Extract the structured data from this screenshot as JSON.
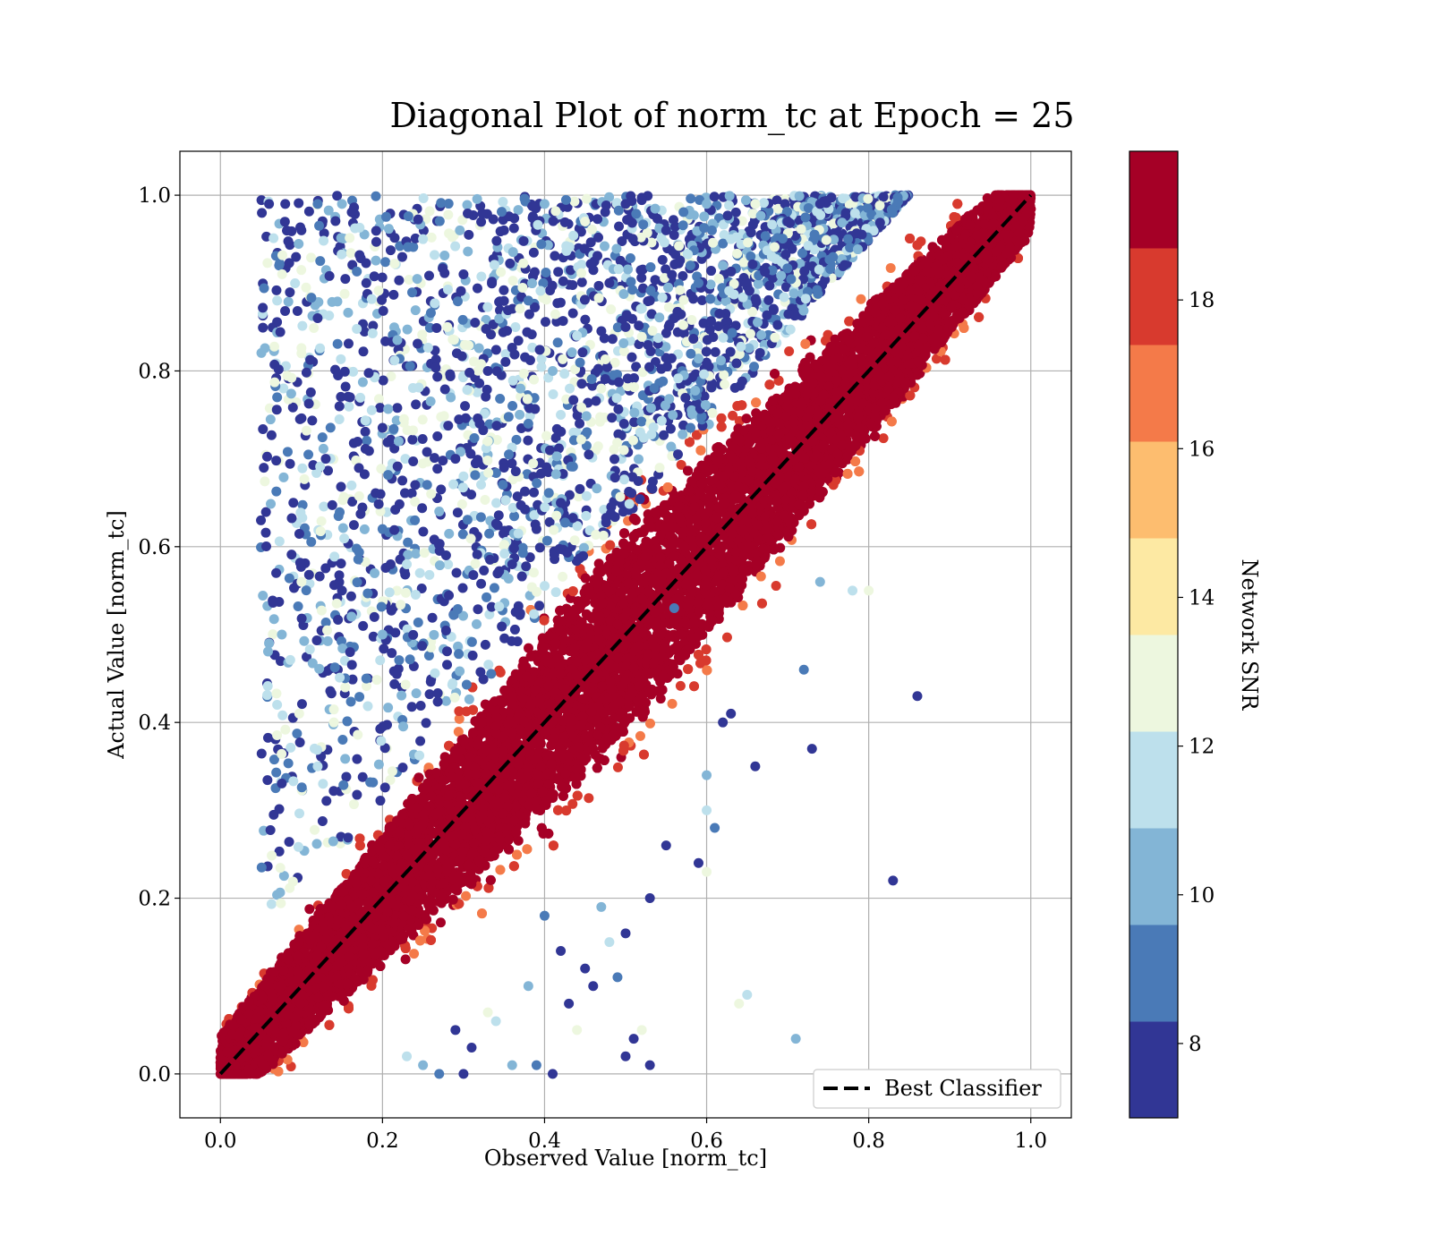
{
  "chart_data": {
    "type": "scatter",
    "title": "Diagonal Plot of norm_tc at Epoch = 25",
    "xlabel": "Observed Value [norm_tc]",
    "ylabel": "Actual Value [norm_tc]",
    "xlim": [
      -0.05,
      1.05
    ],
    "ylim": [
      -0.05,
      1.05
    ],
    "xticks": [
      "0.0",
      "0.2",
      "0.4",
      "0.6",
      "0.8",
      "1.0"
    ],
    "yticks": [
      "0.0",
      "0.2",
      "0.4",
      "0.6",
      "0.8",
      "1.0"
    ],
    "grid": true,
    "reference_line": {
      "label": "Best Classifier",
      "x": [
        0,
        1
      ],
      "y": [
        0,
        1
      ],
      "style": "dashed",
      "color": "#000000"
    },
    "legend": {
      "placement": "lower-right",
      "entries": [
        "Best Classifier"
      ]
    },
    "colorbar": {
      "label": "Network SNR",
      "range": [
        7,
        20
      ],
      "ticks": [
        "8",
        "10",
        "12",
        "14",
        "16",
        "18"
      ],
      "tick_values": [
        8,
        10,
        12,
        14,
        16,
        18
      ],
      "bands": [
        "#313695",
        "#4575b4",
        "#74add1",
        "#abd9e9",
        "#e0f3f8",
        "#fee090",
        "#fdae61",
        "#f46d43",
        "#d73027",
        "#a50026"
      ],
      "band_colors": [
        "#313695",
        "#4a7ab7",
        "#83b5d6",
        "#bde0ec",
        "#edf7df",
        "#fde9a3",
        "#fdbd6f",
        "#f47a49",
        "#d83a2e",
        "#a50026"
      ]
    },
    "series": [
      {
        "kind": "main_diagonal_band",
        "snr_color": "#a50026",
        "description_points": [
          [
            0.0,
            0.0
          ],
          [
            0.05,
            0.08
          ],
          [
            0.1,
            0.14
          ],
          [
            0.15,
            0.19
          ],
          [
            0.2,
            0.24
          ],
          [
            0.25,
            0.29
          ],
          [
            0.3,
            0.33
          ],
          [
            0.35,
            0.38
          ],
          [
            0.4,
            0.43
          ],
          [
            0.45,
            0.48
          ],
          [
            0.5,
            0.52
          ],
          [
            0.55,
            0.57
          ],
          [
            0.6,
            0.62
          ],
          [
            0.65,
            0.67
          ],
          [
            0.7,
            0.71
          ],
          [
            0.75,
            0.76
          ],
          [
            0.8,
            0.81
          ],
          [
            0.85,
            0.86
          ],
          [
            0.9,
            0.9
          ],
          [
            0.95,
            0.94
          ],
          [
            1.0,
            1.0
          ],
          [
            0.05,
            0.0
          ],
          [
            0.1,
            0.03
          ],
          [
            0.15,
            0.07
          ],
          [
            0.2,
            0.12
          ],
          [
            0.25,
            0.17
          ],
          [
            0.3,
            0.22
          ],
          [
            0.35,
            0.27
          ],
          [
            0.4,
            0.32
          ],
          [
            0.45,
            0.37
          ],
          [
            0.5,
            0.42
          ],
          [
            0.55,
            0.47
          ],
          [
            0.6,
            0.52
          ],
          [
            0.65,
            0.57
          ],
          [
            0.7,
            0.62
          ],
          [
            0.75,
            0.68
          ],
          [
            0.8,
            0.73
          ],
          [
            0.85,
            0.79
          ],
          [
            0.9,
            0.85
          ],
          [
            0.95,
            0.91
          ],
          [
            0.02,
            0.1
          ],
          [
            0.08,
            0.18
          ],
          [
            0.15,
            0.27
          ],
          [
            0.22,
            0.34
          ],
          [
            0.3,
            0.42
          ],
          [
            0.38,
            0.5
          ],
          [
            0.45,
            0.57
          ],
          [
            0.52,
            0.63
          ],
          [
            0.6,
            0.7
          ],
          [
            0.68,
            0.77
          ],
          [
            0.75,
            0.84
          ],
          [
            0.82,
            0.9
          ],
          [
            0.88,
            0.95
          ],
          [
            0.92,
            0.99
          ]
        ]
      },
      {
        "kind": "low_snr_outliers_above",
        "snr_range": [
          7,
          13
        ],
        "description_points": [
          [
            0.06,
            0.99
          ],
          [
            0.08,
            0.99
          ],
          [
            0.1,
            0.96
          ],
          [
            0.12,
            0.99
          ],
          [
            0.15,
            0.99
          ],
          [
            0.07,
            0.88
          ],
          [
            0.1,
            0.82
          ],
          [
            0.12,
            0.86
          ],
          [
            0.05,
            0.63
          ],
          [
            0.09,
            0.65
          ],
          [
            0.07,
            0.77
          ],
          [
            0.06,
            0.49
          ],
          [
            0.07,
            0.42
          ],
          [
            0.1,
            0.56
          ],
          [
            0.13,
            0.7
          ],
          [
            0.16,
            0.77
          ],
          [
            0.18,
            0.9
          ],
          [
            0.2,
            0.62
          ],
          [
            0.22,
            0.72
          ],
          [
            0.25,
            0.95
          ],
          [
            0.28,
            0.85
          ],
          [
            0.3,
            0.91
          ],
          [
            0.33,
            0.8
          ],
          [
            0.35,
            0.96
          ],
          [
            0.38,
            0.88
          ],
          [
            0.4,
            0.99
          ],
          [
            0.42,
            0.75
          ],
          [
            0.45,
            0.97
          ],
          [
            0.48,
            0.9
          ],
          [
            0.5,
            0.99
          ],
          [
            0.55,
            0.96
          ],
          [
            0.58,
            0.92
          ],
          [
            0.6,
            0.99
          ],
          [
            0.63,
            0.95
          ],
          [
            0.66,
            0.99
          ],
          [
            0.7,
            0.97
          ],
          [
            0.74,
            0.99
          ],
          [
            0.15,
            0.55
          ],
          [
            0.18,
            0.45
          ],
          [
            0.2,
            0.5
          ],
          [
            0.23,
            0.58
          ],
          [
            0.26,
            0.66
          ],
          [
            0.29,
            0.7
          ],
          [
            0.32,
            0.74
          ],
          [
            0.35,
            0.69
          ],
          [
            0.38,
            0.74
          ],
          [
            0.41,
            0.8
          ],
          [
            0.44,
            0.84
          ],
          [
            0.47,
            0.78
          ],
          [
            0.5,
            0.85
          ],
          [
            0.53,
            0.88
          ],
          [
            0.56,
            0.86
          ],
          [
            0.59,
            0.9
          ],
          [
            0.62,
            0.92
          ],
          [
            0.12,
            0.35
          ],
          [
            0.14,
            0.4
          ],
          [
            0.16,
            0.48
          ],
          [
            0.19,
            0.52
          ],
          [
            0.21,
            0.58
          ],
          [
            0.24,
            0.63
          ],
          [
            0.27,
            0.64
          ],
          [
            0.3,
            0.68
          ],
          [
            0.33,
            0.72
          ],
          [
            0.36,
            0.58
          ],
          [
            0.39,
            0.62
          ],
          [
            0.42,
            0.65
          ]
        ]
      },
      {
        "kind": "low_snr_outliers_below",
        "snr_range": [
          7,
          13
        ],
        "description_points": [
          [
            0.86,
            0.43
          ],
          [
            0.83,
            0.22
          ],
          [
            0.73,
            0.37
          ],
          [
            0.72,
            0.46
          ],
          [
            0.71,
            0.04
          ],
          [
            0.65,
            0.09
          ],
          [
            0.64,
            0.08
          ],
          [
            0.66,
            0.35
          ],
          [
            0.63,
            0.41
          ],
          [
            0.62,
            0.4
          ],
          [
            0.61,
            0.28
          ],
          [
            0.6,
            0.34
          ],
          [
            0.6,
            0.3
          ],
          [
            0.6,
            0.23
          ],
          [
            0.59,
            0.24
          ],
          [
            0.53,
            0.01
          ],
          [
            0.5,
            0.02
          ],
          [
            0.49,
            0.11
          ],
          [
            0.47,
            0.19
          ],
          [
            0.48,
            0.15
          ],
          [
            0.44,
            0.05
          ],
          [
            0.46,
            0.1
          ],
          [
            0.43,
            0.08
          ],
          [
            0.41,
            0.0
          ],
          [
            0.39,
            0.01
          ],
          [
            0.36,
            0.01
          ],
          [
            0.34,
            0.06
          ],
          [
            0.33,
            0.07
          ],
          [
            0.31,
            0.03
          ],
          [
            0.29,
            0.05
          ],
          [
            0.3,
            0.0
          ],
          [
            0.27,
            0.0
          ],
          [
            0.25,
            0.01
          ],
          [
            0.23,
            0.02
          ],
          [
            0.52,
            0.05
          ],
          [
            0.55,
            0.26
          ],
          [
            0.53,
            0.2
          ],
          [
            0.5,
            0.16
          ],
          [
            0.56,
            0.53
          ],
          [
            0.74,
            0.56
          ],
          [
            0.78,
            0.55
          ],
          [
            0.8,
            0.55
          ],
          [
            0.51,
            0.04
          ],
          [
            0.45,
            0.12
          ],
          [
            0.42,
            0.14
          ],
          [
            0.4,
            0.18
          ],
          [
            0.38,
            0.1
          ]
        ]
      }
    ]
  }
}
